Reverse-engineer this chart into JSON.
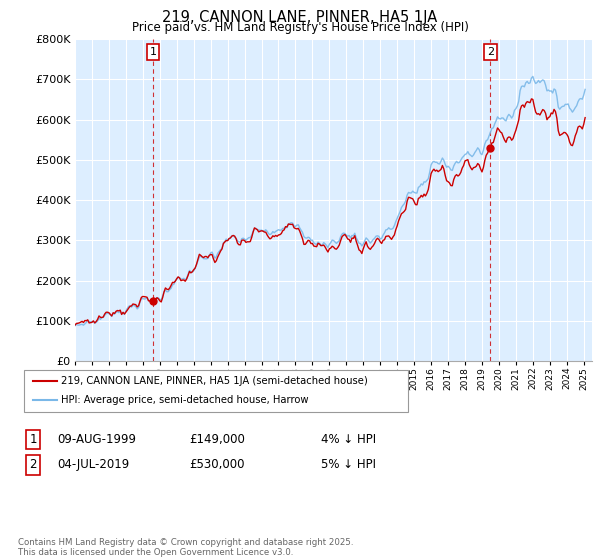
{
  "title": "219, CANNON LANE, PINNER, HA5 1JA",
  "subtitle": "Price paid vs. HM Land Registry's House Price Index (HPI)",
  "legend_line1": "219, CANNON LANE, PINNER, HA5 1JA (semi-detached house)",
  "legend_line2": "HPI: Average price, semi-detached house, Harrow",
  "sale1_label": "1",
  "sale1_date": "09-AUG-1999",
  "sale1_price": "£149,000",
  "sale1_note": "4% ↓ HPI",
  "sale2_label": "2",
  "sale2_date": "04-JUL-2019",
  "sale2_price": "£530,000",
  "sale2_note": "5% ↓ HPI",
  "sale1_year": 1999.6,
  "sale1_value": 149000,
  "sale2_year": 2019.5,
  "sale2_value": 530000,
  "hpi_color": "#7ab8e8",
  "price_color": "#cc0000",
  "marker_color": "#cc0000",
  "chart_bg": "#ddeeff",
  "ylabel_min": 0,
  "ylabel_max": 800000,
  "footer": "Contains HM Land Registry data © Crown copyright and database right 2025.\nThis data is licensed under the Open Government Licence v3.0."
}
